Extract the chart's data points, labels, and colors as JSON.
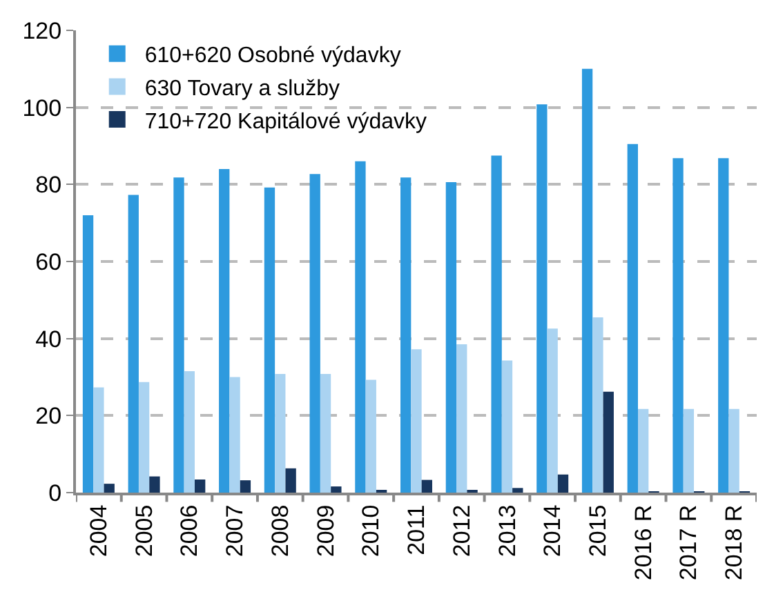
{
  "chart_data": {
    "type": "bar",
    "categories": [
      "2004",
      "2005",
      "2006",
      "2007",
      "2008",
      "2009",
      "2010",
      "2011",
      "2012",
      "2013",
      "2014",
      "2015",
      "2016 R",
      "2017 R",
      "2018 R"
    ],
    "series": [
      {
        "name": "610+620 Osobné výdavky",
        "color": "#2e9ade",
        "values": [
          72,
          77.3,
          81.8,
          84,
          79.2,
          82.7,
          86,
          81.8,
          80.6,
          87.5,
          100.8,
          110,
          90.5,
          86.8,
          86.8
        ]
      },
      {
        "name": "630 Tovary a služby",
        "color": "#aad3f1",
        "values": [
          27.3,
          28.7,
          31.5,
          30,
          30.8,
          30.8,
          29.3,
          37.2,
          38.5,
          34.3,
          42.6,
          45.5,
          21.7,
          21.7,
          21.7
        ]
      },
      {
        "name": "710+720 Kapitálové výdavky",
        "color": "#18365e",
        "values": [
          2.3,
          4.2,
          3.4,
          3.2,
          6.3,
          1.6,
          0.4,
          3.3,
          0.6,
          1.2,
          4.7,
          26.2,
          0.3,
          0.3,
          0.3
        ]
      }
    ],
    "ylim": [
      0,
      120
    ],
    "yticks": [
      0,
      20,
      40,
      60,
      80,
      100,
      120
    ],
    "grid": "y",
    "legend": "top left"
  }
}
